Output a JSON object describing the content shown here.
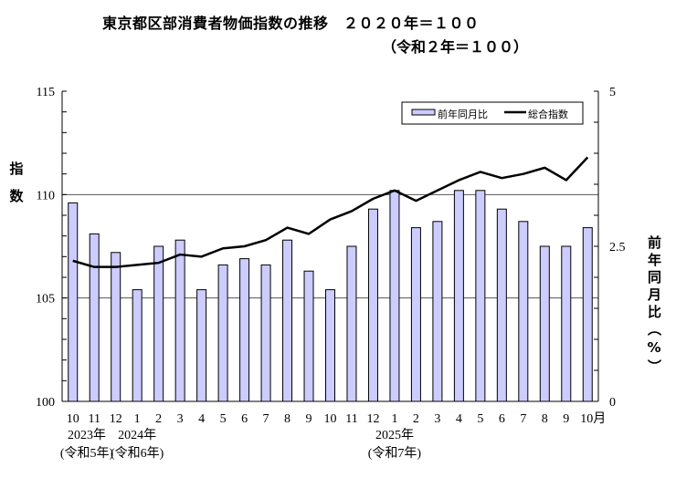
{
  "chart_data": {
    "type": "bar+line",
    "title": "東京都区部消費者物価指数の推移　２０２０年＝１００",
    "subtitle": "（令和２年＝１００）",
    "categories": [
      "10",
      "11",
      "12",
      "1",
      "2",
      "3",
      "4",
      "5",
      "6",
      "7",
      "8",
      "9",
      "10",
      "11",
      "12",
      "1",
      "2",
      "3",
      "4",
      "5",
      "6",
      "7",
      "8",
      "9",
      "10月"
    ],
    "year_labels": [
      {
        "year": "2023年",
        "era": "(令和5年)",
        "at_index": 0
      },
      {
        "year": "2024年",
        "era": "(令和6年)",
        "at_index": 3
      },
      {
        "year": "2025年",
        "era": "(令和7年)",
        "at_index": 15
      }
    ],
    "series": [
      {
        "name": "前年同月比",
        "type": "bar",
        "axis": "right",
        "color": "#ccccff",
        "values": [
          3.2,
          2.7,
          2.4,
          1.8,
          2.5,
          2.6,
          1.8,
          2.2,
          2.3,
          2.2,
          2.6,
          2.1,
          1.8,
          2.5,
          3.1,
          3.4,
          2.8,
          2.9,
          3.4,
          3.4,
          3.1,
          2.9,
          2.5,
          2.5,
          2.8
        ]
      },
      {
        "name": "総合指数",
        "type": "line",
        "axis": "left",
        "color": "#000000",
        "values": [
          106.8,
          106.5,
          106.5,
          106.6,
          106.7,
          107.1,
          107.0,
          107.4,
          107.5,
          107.8,
          108.4,
          108.1,
          108.8,
          109.2,
          109.8,
          110.2,
          109.7,
          110.2,
          110.7,
          111.1,
          110.8,
          111.0,
          111.3,
          110.7,
          111.8
        ]
      }
    ],
    "left_axis": {
      "label": "指数",
      "ylim": [
        100,
        115
      ],
      "ticks": [
        "100",
        "105",
        "110",
        "115"
      ]
    },
    "right_axis": {
      "label": "前年同月比（%）",
      "ylim": [
        0,
        5
      ],
      "ticks": [
        "0",
        "2.5",
        "5"
      ]
    },
    "grid": "horizontal at 105 and 110",
    "legend": "top-right"
  }
}
